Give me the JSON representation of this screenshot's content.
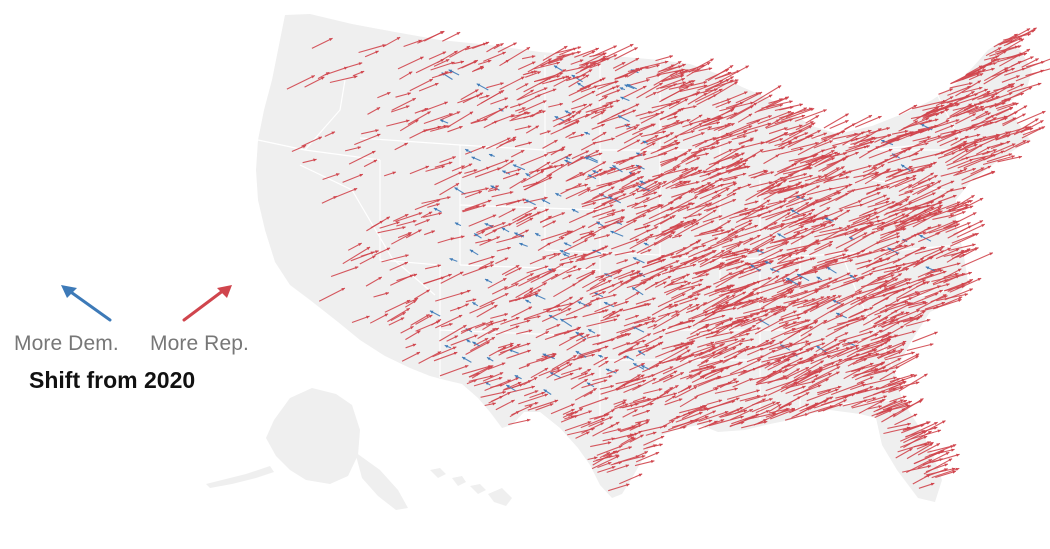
{
  "legend": {
    "dem_label": "More Dem.",
    "rep_label": "More Rep.",
    "title": "Shift from 2020",
    "dem_color": "#3d7ab8",
    "rep_color": "#d0454d",
    "dem_arrow_icon": "arrow-up-left-icon",
    "rep_arrow_icon": "arrow-up-right-icon"
  },
  "map": {
    "region": "United States by county",
    "land_color": "#efefef",
    "border_color": "#ffffff",
    "rep_color": "#d0454d",
    "dem_color": "#3d7ab8"
  }
}
